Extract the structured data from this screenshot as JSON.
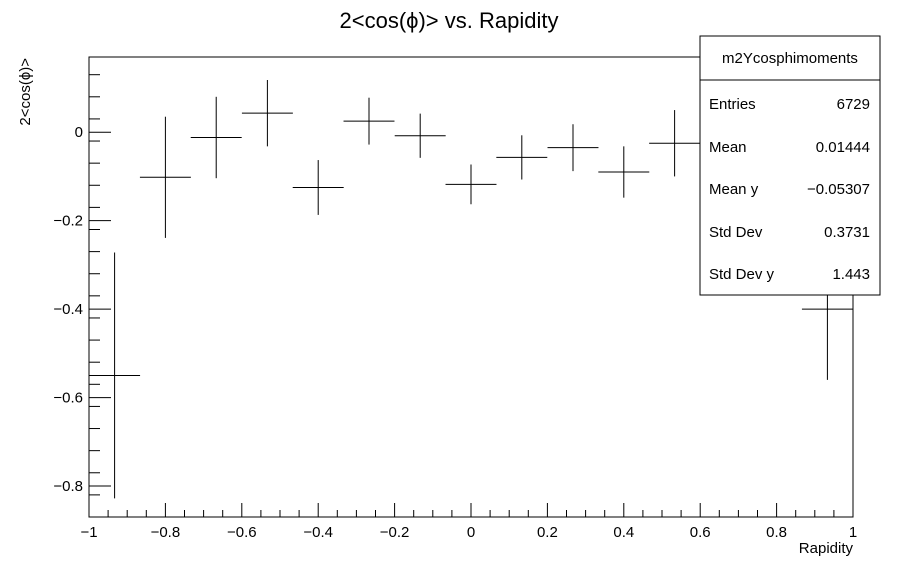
{
  "chart_data": {
    "type": "scatter",
    "title": "2<cos(ϕ)> vs. Rapidity",
    "xlabel": "Rapidity",
    "ylabel": "2<cos(ϕ)>",
    "xlim": [
      -1,
      1
    ],
    "ylim": [
      -0.87,
      0.17
    ],
    "xticks": [
      -1,
      -0.8,
      -0.6,
      -0.4,
      -0.2,
      0,
      0.2,
      0.4,
      0.6,
      0.8,
      1
    ],
    "xtick_labels": [
      "−1",
      "−0.8",
      "−0.6",
      "−0.4",
      "−0.2",
      "0",
      "0.2",
      "0.4",
      "0.6",
      "0.8",
      "1"
    ],
    "yticks": [
      -0.8,
      -0.6,
      -0.4,
      -0.2,
      0
    ],
    "ytick_labels": [
      "−0.8",
      "−0.6",
      "−0.4",
      "−0.2",
      "0"
    ],
    "grid": false,
    "points": [
      {
        "x": -0.933,
        "xerr": 0.0667,
        "y": -0.55,
        "yerr": 0.278
      },
      {
        "x": -0.8,
        "xerr": 0.0667,
        "y": -0.102,
        "yerr": 0.137
      },
      {
        "x": -0.667,
        "xerr": 0.0667,
        "y": -0.012,
        "yerr": 0.092
      },
      {
        "x": -0.533,
        "xerr": 0.0667,
        "y": 0.043,
        "yerr": 0.075
      },
      {
        "x": -0.4,
        "xerr": 0.0667,
        "y": -0.125,
        "yerr": 0.062
      },
      {
        "x": -0.267,
        "xerr": 0.0667,
        "y": 0.025,
        "yerr": 0.053
      },
      {
        "x": -0.133,
        "xerr": 0.0667,
        "y": -0.008,
        "yerr": 0.05
      },
      {
        "x": 0.0,
        "xerr": 0.0667,
        "y": -0.118,
        "yerr": 0.045
      },
      {
        "x": 0.133,
        "xerr": 0.0667,
        "y": -0.057,
        "yerr": 0.05
      },
      {
        "x": 0.267,
        "xerr": 0.0667,
        "y": -0.035,
        "yerr": 0.053
      },
      {
        "x": 0.4,
        "xerr": 0.0667,
        "y": -0.09,
        "yerr": 0.058
      },
      {
        "x": 0.533,
        "xerr": 0.0667,
        "y": -0.025,
        "yerr": 0.075
      },
      {
        "x": 0.933,
        "xerr": 0.0667,
        "y": -0.4,
        "yerr": 0.16
      }
    ],
    "stats_box": {
      "title": "m2Ycosphimoments",
      "placement": "top-right",
      "rows": [
        {
          "label": "Entries",
          "value": "6729"
        },
        {
          "label": "Mean",
          "value": "0.01444"
        },
        {
          "label": "Mean y",
          "value": "−0.05307"
        },
        {
          "label": "Std Dev",
          "value": "0.3731"
        },
        {
          "label": "Std Dev y",
          "value": "1.443"
        }
      ]
    }
  }
}
